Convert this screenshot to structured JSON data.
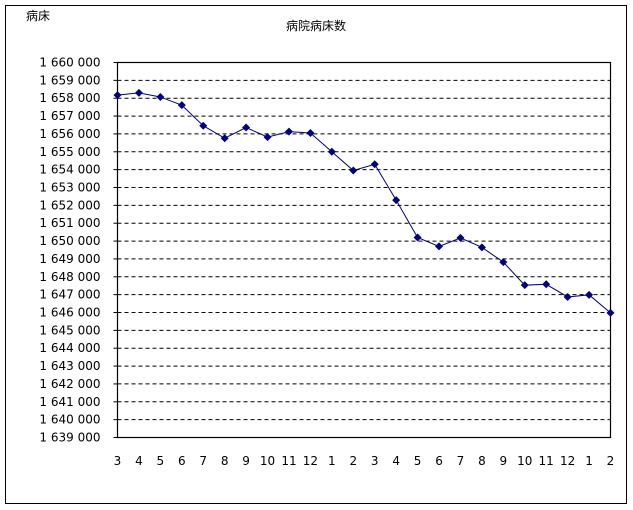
{
  "chart_data": {
    "type": "line",
    "title": "病院病床数",
    "ylabel": "病床",
    "xlabel": "",
    "categories": [
      "3",
      "4",
      "5",
      "6",
      "7",
      "8",
      "9",
      "10",
      "11",
      "12",
      "1",
      "2",
      "3",
      "4",
      "5",
      "6",
      "7",
      "8",
      "9",
      "10",
      "11",
      "12",
      "1",
      "2"
    ],
    "series": [
      {
        "values": [
          1658170,
          1658300,
          1658070,
          1657610,
          1656460,
          1655760,
          1656360,
          1655820,
          1656130,
          1656050,
          1655000,
          1653950,
          1654300,
          1652290,
          1650200,
          1649700,
          1650180,
          1649650,
          1648820,
          1647530,
          1647580,
          1646870,
          1646990,
          1645980
        ],
        "color": "#000080"
      }
    ],
    "ylim": [
      1639000,
      1660000
    ],
    "ytick_step": 1000,
    "ytick_labels": [
      "1 639 000",
      "1 640 000",
      "1 641 000",
      "1 642 000",
      "1 643 000",
      "1 644 000",
      "1 645 000",
      "1 646 000",
      "1 647 000",
      "1 648 000",
      "1 649 000",
      "1 650 000",
      "1 651 000",
      "1 652 000",
      "1 653 000",
      "1 654 000",
      "1 655 000",
      "1 656 000",
      "1 657 000",
      "1 658 000",
      "1 659 000",
      "1 660 000"
    ],
    "grid": "horizontal-dashed",
    "legend": "none",
    "marker": "diamond"
  }
}
